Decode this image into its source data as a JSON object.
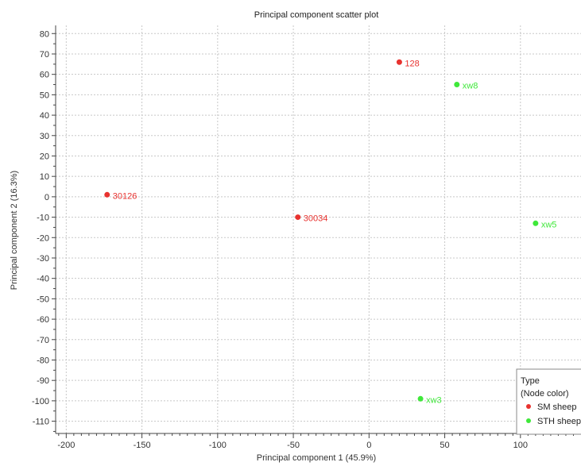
{
  "chart_data": {
    "type": "scatter",
    "title": "Principal component scatter plot",
    "xlabel": "Principal component 1 (45.9%)",
    "ylabel": "Principal component 2 (16.3%)",
    "xlim": [
      -207,
      140
    ],
    "ylim": [
      -116,
      84
    ],
    "xticks": [
      -200,
      -150,
      -100,
      -50,
      0,
      50,
      100
    ],
    "yticks": [
      80,
      70,
      60,
      50,
      40,
      30,
      20,
      10,
      0,
      -10,
      -20,
      -30,
      -40,
      -50,
      -60,
      -70,
      -80,
      -90,
      -100,
      -110
    ],
    "grid": true,
    "legend": {
      "placement": "bottom-right",
      "title": "Type",
      "subtitle": "(Node color)"
    },
    "series": [
      {
        "name": "SM sheep",
        "color": "#e8322f",
        "points": [
          {
            "label": "128",
            "x": 20,
            "y": 66
          },
          {
            "label": "30126",
            "x": -173,
            "y": 1
          },
          {
            "label": "30034",
            "x": -47,
            "y": -10
          }
        ]
      },
      {
        "name": "STH sheep",
        "color": "#3fe83a",
        "points": [
          {
            "label": "xw8",
            "x": 58,
            "y": 55
          },
          {
            "label": "xw5",
            "x": 110,
            "y": -13
          },
          {
            "label": "xw3",
            "x": 34,
            "y": -99
          }
        ]
      }
    ]
  }
}
